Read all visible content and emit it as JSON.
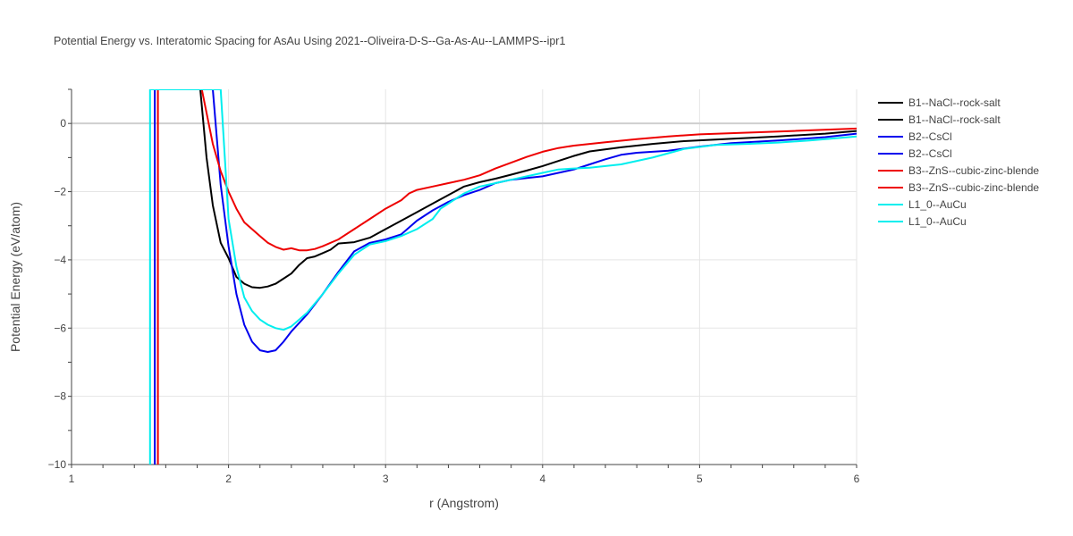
{
  "chart_data": {
    "type": "line",
    "title": "Potential Energy vs. Interatomic Spacing for AsAu Using 2021--Oliveira-D-S--Ga-As-Au--LAMMPS--ipr1",
    "xlabel": "r (Angstrom)",
    "ylabel": "Potential Energy (eV/atom)",
    "xlim": [
      1,
      6
    ],
    "ylim": [
      -10,
      1
    ],
    "xticks": [
      1,
      2,
      3,
      4,
      5,
      6
    ],
    "yticks": [
      -10,
      -8,
      -6,
      -4,
      -2,
      0
    ],
    "grid": true,
    "legend_position": "right",
    "series": [
      {
        "name": "B1--NaCl--rock-salt",
        "color": "#000000",
        "x": [
          1.82,
          1.86,
          1.9,
          1.95,
          2.0,
          2.05,
          2.1,
          2.15,
          2.2,
          2.25,
          2.3,
          2.35,
          2.4,
          2.45,
          2.5,
          2.55,
          2.6,
          2.65,
          2.7,
          2.8,
          2.9,
          3.0,
          3.1,
          3.2,
          3.3,
          3.4,
          3.5,
          3.6,
          3.7,
          3.8,
          3.9,
          4.0,
          4.1,
          4.2,
          4.3,
          4.5,
          4.7,
          4.9,
          5.2,
          5.5,
          5.8,
          6.0
        ],
        "values": [
          1.0,
          -1.0,
          -2.4,
          -3.5,
          -3.95,
          -4.5,
          -4.7,
          -4.8,
          -4.82,
          -4.78,
          -4.7,
          -4.55,
          -4.4,
          -4.15,
          -3.95,
          -3.9,
          -3.8,
          -3.7,
          -3.52,
          -3.48,
          -3.35,
          -3.1,
          -2.85,
          -2.6,
          -2.35,
          -2.1,
          -1.85,
          -1.72,
          -1.62,
          -1.5,
          -1.38,
          -1.25,
          -1.1,
          -0.95,
          -0.82,
          -0.7,
          -0.6,
          -0.52,
          -0.45,
          -0.38,
          -0.3,
          -0.22
        ]
      },
      {
        "name": "B2--CsCl",
        "color": "#0000ee",
        "x": [
          1.53,
          1.53,
          1.9,
          1.95,
          2.0,
          2.05,
          2.1,
          2.15,
          2.2,
          2.25,
          2.3,
          2.35,
          2.4,
          2.5,
          2.6,
          2.7,
          2.8,
          2.9,
          3.0,
          3.1,
          3.2,
          3.3,
          3.4,
          3.5,
          3.6,
          3.7,
          3.8,
          3.9,
          4.0,
          4.1,
          4.2,
          4.3,
          4.4,
          4.5,
          4.6,
          4.7,
          4.8,
          5.0,
          5.2,
          5.5,
          5.8,
          6.0
        ],
        "values": [
          -10.0,
          1.0,
          1.0,
          -1.8,
          -3.6,
          -5.0,
          -5.9,
          -6.4,
          -6.65,
          -6.7,
          -6.65,
          -6.4,
          -6.1,
          -5.6,
          -5.0,
          -4.35,
          -3.75,
          -3.5,
          -3.4,
          -3.25,
          -2.85,
          -2.55,
          -2.3,
          -2.1,
          -1.95,
          -1.75,
          -1.65,
          -1.6,
          -1.55,
          -1.45,
          -1.35,
          -1.2,
          -1.05,
          -0.92,
          -0.86,
          -0.83,
          -0.8,
          -0.68,
          -0.58,
          -0.5,
          -0.4,
          -0.3
        ]
      },
      {
        "name": "B3--ZnS--cubic-zinc-blende",
        "color": "#ee0000",
        "x": [
          1.55,
          1.55,
          1.83,
          1.9,
          1.95,
          2.0,
          2.05,
          2.1,
          2.15,
          2.2,
          2.25,
          2.3,
          2.35,
          2.4,
          2.45,
          2.5,
          2.55,
          2.6,
          2.7,
          2.8,
          2.9,
          3.0,
          3.1,
          3.15,
          3.2,
          3.3,
          3.4,
          3.5,
          3.6,
          3.7,
          3.8,
          3.9,
          4.0,
          4.1,
          4.2,
          4.4,
          4.6,
          4.8,
          5.0,
          5.3,
          5.6,
          6.0
        ],
        "values": [
          -10.0,
          1.0,
          1.0,
          -0.6,
          -1.4,
          -2.0,
          -2.5,
          -2.9,
          -3.1,
          -3.3,
          -3.5,
          -3.62,
          -3.7,
          -3.66,
          -3.72,
          -3.72,
          -3.68,
          -3.6,
          -3.4,
          -3.1,
          -2.8,
          -2.5,
          -2.25,
          -2.05,
          -1.95,
          -1.85,
          -1.75,
          -1.65,
          -1.52,
          -1.32,
          -1.15,
          -0.98,
          -0.83,
          -0.72,
          -0.65,
          -0.55,
          -0.46,
          -0.38,
          -0.32,
          -0.27,
          -0.22,
          -0.15
        ]
      },
      {
        "name": "L1_0--AuCu",
        "color": "#00eeee",
        "x": [
          1.5,
          1.5,
          1.95,
          2.0,
          2.05,
          2.1,
          2.15,
          2.2,
          2.25,
          2.3,
          2.35,
          2.4,
          2.5,
          2.6,
          2.7,
          2.8,
          2.9,
          3.0,
          3.1,
          3.2,
          3.3,
          3.35,
          3.4,
          3.5,
          3.6,
          3.7,
          3.8,
          3.9,
          4.0,
          4.1,
          4.2,
          4.3,
          4.5,
          4.7,
          4.9,
          5.1,
          5.3,
          5.5,
          5.7,
          6.0
        ],
        "values": [
          -10.0,
          1.0,
          1.0,
          -2.8,
          -4.2,
          -5.1,
          -5.5,
          -5.75,
          -5.9,
          -6.0,
          -6.05,
          -5.95,
          -5.55,
          -5.0,
          -4.4,
          -3.85,
          -3.55,
          -3.45,
          -3.3,
          -3.1,
          -2.8,
          -2.5,
          -2.35,
          -2.05,
          -1.85,
          -1.75,
          -1.65,
          -1.55,
          -1.45,
          -1.35,
          -1.32,
          -1.3,
          -1.2,
          -1.0,
          -0.75,
          -0.63,
          -0.6,
          -0.56,
          -0.5,
          -0.38
        ]
      }
    ]
  },
  "legend": {
    "entries": [
      {
        "label": "B1--NaCl--rock-salt",
        "color": "#000000"
      },
      {
        "label": "B1--NaCl--rock-salt",
        "color": "#000000"
      },
      {
        "label": "B2--CsCl",
        "color": "#0000ee"
      },
      {
        "label": "B2--CsCl",
        "color": "#0000ee"
      },
      {
        "label": "B3--ZnS--cubic-zinc-blende",
        "color": "#ee0000"
      },
      {
        "label": "B3--ZnS--cubic-zinc-blende",
        "color": "#ee0000"
      },
      {
        "label": "L1_0--AuCu",
        "color": "#00eeee"
      },
      {
        "label": "L1_0--AuCu",
        "color": "#00eeee"
      }
    ]
  }
}
